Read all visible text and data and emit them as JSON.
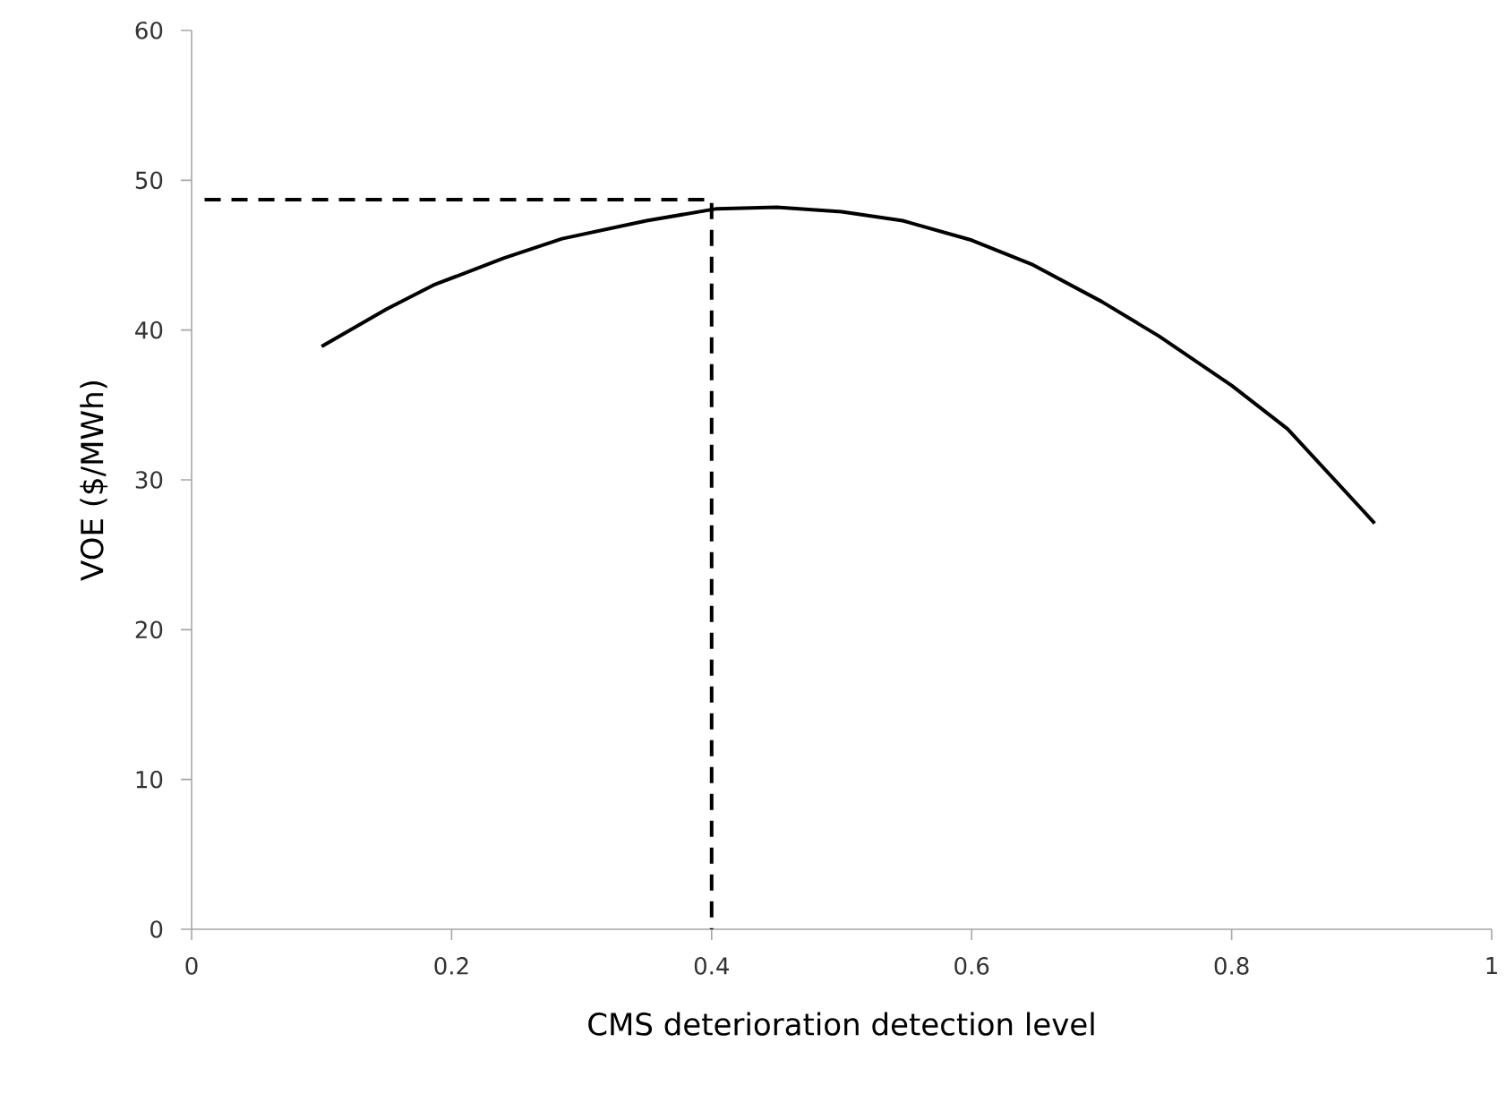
{
  "chart_data": {
    "type": "line",
    "xlabel": "CMS deterioration detection level",
    "ylabel": "VOE ($/MWh)",
    "xlim": [
      0,
      1
    ],
    "ylim": [
      0,
      60
    ],
    "xticks": [
      0,
      0.2,
      0.4,
      0.6,
      0.8,
      1
    ],
    "yticks": [
      0,
      10,
      20,
      30,
      40,
      50,
      60
    ],
    "series": [
      {
        "color": "#000000",
        "line_style": "solid",
        "x": [
          0.1,
          0.15,
          0.186,
          0.24,
          0.285,
          0.35,
          0.404,
          0.45,
          0.5,
          0.547,
          0.6,
          0.646,
          0.7,
          0.744,
          0.8,
          0.843,
          0.91
        ],
        "values": [
          38.9,
          41.4,
          43.0,
          44.8,
          46.1,
          47.3,
          48.1,
          48.2,
          47.9,
          47.3,
          46.0,
          44.4,
          41.9,
          39.6,
          36.3,
          33.4,
          27.1
        ]
      },
      {
        "color": "#000000",
        "line_style": "dashed",
        "x": [
          0.01,
          0.4,
          0.4
        ],
        "values": [
          48.7,
          48.7,
          0
        ]
      }
    ]
  }
}
